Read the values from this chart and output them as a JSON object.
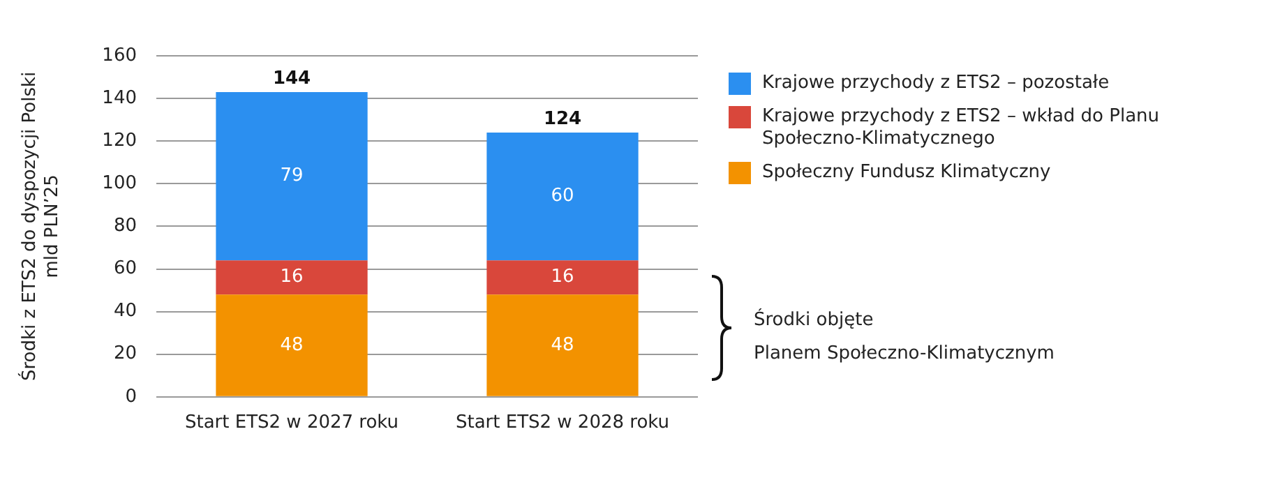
{
  "chart_data": {
    "type": "bar",
    "stacked": true,
    "ylabel": "Środki z ETS2 do dyspozycji Polski\nmld PLN’25",
    "categories": [
      "Start ETS2 w 2027 roku",
      "Start ETS2 w 2028 roku"
    ],
    "series": [
      {
        "name": "Społeczny Fundusz Klimatyczny",
        "color": "#f39200",
        "values": [
          48,
          48
        ]
      },
      {
        "name": "Krajowe przychody z ETS2 – wkład do Planu Społeczno-Klimatycznego",
        "color": "#d9473b",
        "values": [
          16,
          16
        ]
      },
      {
        "name": "Krajowe przychody z ETS2 – pozostałe",
        "color": "#2b8ff0",
        "values": [
          79,
          60
        ]
      }
    ],
    "totals": [
      "144",
      "124"
    ],
    "data_labels": true,
    "ylim": [
      0,
      160
    ],
    "yticks": [
      0,
      20,
      40,
      60,
      80,
      100,
      120,
      140,
      160
    ],
    "grid": "y",
    "legend": "right",
    "annotations": [
      "Środki objęte\nPlanem Społeczno-Klimatycznym"
    ]
  }
}
